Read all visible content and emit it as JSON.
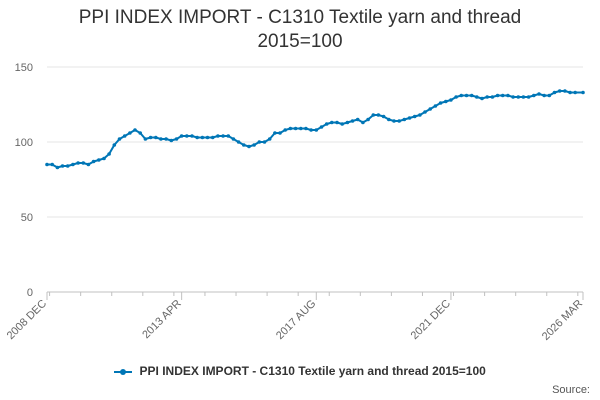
{
  "title_line1": "PPI INDEX IMPORT - C1310 Textile yarn and thread",
  "title_line2": "2015=100",
  "source_label": "Source:",
  "series_color": "#0076b6",
  "chart_data": {
    "type": "line",
    "title": "PPI INDEX IMPORT - C1310 Textile yarn and thread 2015=100",
    "xlabel": "",
    "ylabel": "",
    "ylim": [
      0,
      150
    ],
    "yticks": [
      0,
      50,
      100,
      150
    ],
    "xlim": [
      "2008-12",
      "2026-03"
    ],
    "xticks": [
      "2008 DEC",
      "2013 APR",
      "2017 AUG",
      "2021 DEC",
      "2026 MAR"
    ],
    "grid": true,
    "legend_position": "bottom",
    "series": [
      {
        "name": "PPI INDEX IMPORT - C1310 Textile yarn and thread 2015=100",
        "points": [
          [
            "2008-12",
            85
          ],
          [
            "2009-02",
            85
          ],
          [
            "2009-04",
            83
          ],
          [
            "2009-06",
            84
          ],
          [
            "2009-08",
            84
          ],
          [
            "2009-10",
            85
          ],
          [
            "2009-12",
            86
          ],
          [
            "2010-02",
            86
          ],
          [
            "2010-04",
            85
          ],
          [
            "2010-06",
            87
          ],
          [
            "2010-08",
            88
          ],
          [
            "2010-10",
            89
          ],
          [
            "2010-12",
            92
          ],
          [
            "2011-02",
            98
          ],
          [
            "2011-04",
            102
          ],
          [
            "2011-06",
            104
          ],
          [
            "2011-08",
            106
          ],
          [
            "2011-10",
            108
          ],
          [
            "2011-12",
            106
          ],
          [
            "2012-02",
            102
          ],
          [
            "2012-04",
            103
          ],
          [
            "2012-06",
            103
          ],
          [
            "2012-08",
            102
          ],
          [
            "2012-10",
            102
          ],
          [
            "2012-12",
            101
          ],
          [
            "2013-02",
            102
          ],
          [
            "2013-04",
            104
          ],
          [
            "2013-06",
            104
          ],
          [
            "2013-08",
            104
          ],
          [
            "2013-10",
            103
          ],
          [
            "2013-12",
            103
          ],
          [
            "2014-02",
            103
          ],
          [
            "2014-04",
            103
          ],
          [
            "2014-06",
            104
          ],
          [
            "2014-08",
            104
          ],
          [
            "2014-10",
            104
          ],
          [
            "2014-12",
            102
          ],
          [
            "2015-02",
            100
          ],
          [
            "2015-04",
            98
          ],
          [
            "2015-06",
            97
          ],
          [
            "2015-08",
            98
          ],
          [
            "2015-10",
            100
          ],
          [
            "2015-12",
            100
          ],
          [
            "2016-02",
            102
          ],
          [
            "2016-04",
            106
          ],
          [
            "2016-06",
            106
          ],
          [
            "2016-08",
            108
          ],
          [
            "2016-10",
            109
          ],
          [
            "2016-12",
            109
          ],
          [
            "2017-02",
            109
          ],
          [
            "2017-04",
            109
          ],
          [
            "2017-06",
            108
          ],
          [
            "2017-08",
            108
          ],
          [
            "2017-10",
            110
          ],
          [
            "2017-12",
            112
          ],
          [
            "2018-02",
            113
          ],
          [
            "2018-04",
            113
          ],
          [
            "2018-06",
            112
          ],
          [
            "2018-08",
            113
          ],
          [
            "2018-10",
            114
          ],
          [
            "2018-12",
            115
          ],
          [
            "2019-02",
            113
          ],
          [
            "2019-04",
            115
          ],
          [
            "2019-06",
            118
          ],
          [
            "2019-08",
            118
          ],
          [
            "2019-10",
            117
          ],
          [
            "2019-12",
            115
          ],
          [
            "2020-02",
            114
          ],
          [
            "2020-04",
            114
          ],
          [
            "2020-06",
            115
          ],
          [
            "2020-08",
            116
          ],
          [
            "2020-10",
            117
          ],
          [
            "2020-12",
            118
          ],
          [
            "2021-02",
            120
          ],
          [
            "2021-04",
            122
          ],
          [
            "2021-06",
            124
          ],
          [
            "2021-08",
            126
          ],
          [
            "2021-10",
            127
          ],
          [
            "2021-12",
            128
          ],
          [
            "2022-02",
            130
          ],
          [
            "2022-04",
            131
          ],
          [
            "2022-06",
            131
          ],
          [
            "2022-08",
            131
          ],
          [
            "2022-10",
            130
          ],
          [
            "2022-12",
            129
          ],
          [
            "2023-02",
            130
          ],
          [
            "2023-04",
            130
          ],
          [
            "2023-06",
            131
          ],
          [
            "2023-08",
            131
          ],
          [
            "2023-10",
            131
          ],
          [
            "2023-12",
            130
          ],
          [
            "2024-02",
            130
          ],
          [
            "2024-04",
            130
          ],
          [
            "2024-06",
            130
          ],
          [
            "2024-08",
            131
          ],
          [
            "2024-10",
            132
          ],
          [
            "2024-12",
            131
          ],
          [
            "2025-02",
            131
          ],
          [
            "2025-04",
            133
          ],
          [
            "2025-06",
            134
          ],
          [
            "2025-08",
            134
          ],
          [
            "2025-10",
            133
          ],
          [
            "2025-12",
            133
          ],
          [
            "2026-03",
            133
          ]
        ]
      }
    ]
  }
}
